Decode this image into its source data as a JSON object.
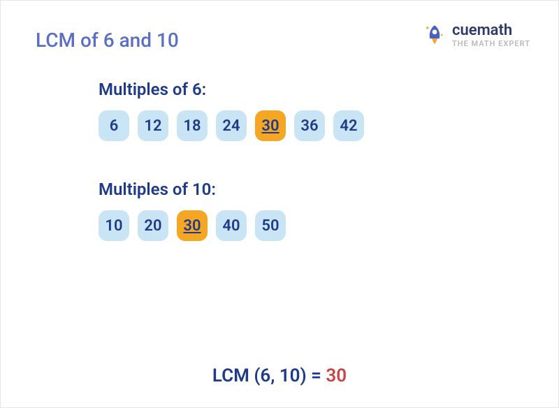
{
  "colors": {
    "title": "#5a6fc4",
    "label": "#1e3a8a",
    "chip_bg": "#c9e5f5",
    "chip_text": "#1e3a8a",
    "highlight_bg": "#f5a623",
    "highlight_text": "#1e3a8a",
    "result_text": "#1e3a8a",
    "result_value": "#c94444",
    "logo_text": "#2b3a67",
    "logo_sub": "#b8b8b8",
    "rocket_body": "#4a5fc4",
    "rocket_window": "#ffffff",
    "rocket_flame": "#f5a623"
  },
  "title": "LCM of 6 and 10",
  "logo": {
    "brand": "cuemath",
    "tagline": "THE MATH EXPERT"
  },
  "sections": [
    {
      "label": "Multiples of 6:",
      "chips": [
        {
          "v": "6",
          "h": false
        },
        {
          "v": "12",
          "h": false
        },
        {
          "v": "18",
          "h": false
        },
        {
          "v": "24",
          "h": false
        },
        {
          "v": "30",
          "h": true
        },
        {
          "v": "36",
          "h": false
        },
        {
          "v": "42",
          "h": false
        }
      ]
    },
    {
      "label": "Multiples of 10:",
      "chips": [
        {
          "v": "10",
          "h": false
        },
        {
          "v": "20",
          "h": false
        },
        {
          "v": "30",
          "h": true
        },
        {
          "v": "40",
          "h": false
        },
        {
          "v": "50",
          "h": false
        }
      ]
    }
  ],
  "result": {
    "prefix": "LCM (6, 10) = ",
    "value": "30"
  }
}
